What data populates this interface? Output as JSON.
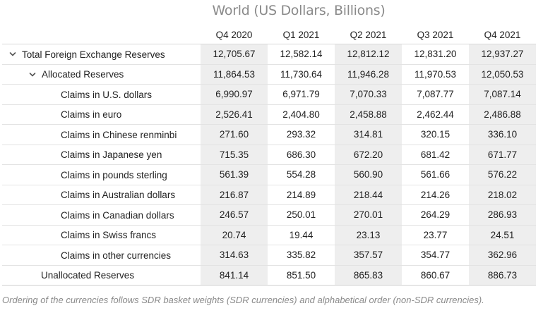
{
  "chart_data": {
    "type": "table",
    "title": "World (US Dollars, Billions)",
    "columns": [
      "Q4 2020",
      "Q1 2021",
      "Q2 2021",
      "Q3 2021",
      "Q4 2021"
    ],
    "rows": [
      {
        "label": "Total Foreign Exchange Reserves",
        "level": 0,
        "expandable": true,
        "values": [
          "12,705.67",
          "12,582.14",
          "12,812.12",
          "12,831.20",
          "12,937.27"
        ]
      },
      {
        "label": "Allocated Reserves",
        "level": 1,
        "expandable": true,
        "values": [
          "11,864.53",
          "11,730.64",
          "11,946.28",
          "11,970.53",
          "12,050.53"
        ]
      },
      {
        "label": "Claims in U.S. dollars",
        "level": 2,
        "expandable": false,
        "values": [
          "6,990.97",
          "6,971.79",
          "7,070.33",
          "7,087.77",
          "7,087.14"
        ]
      },
      {
        "label": "Claims in euro",
        "level": 2,
        "expandable": false,
        "values": [
          "2,526.41",
          "2,404.80",
          "2,458.88",
          "2,462.44",
          "2,486.88"
        ]
      },
      {
        "label": "Claims in Chinese renminbi",
        "level": 2,
        "expandable": false,
        "values": [
          "271.60",
          "293.32",
          "314.81",
          "320.15",
          "336.10"
        ]
      },
      {
        "label": "Claims in Japanese yen",
        "level": 2,
        "expandable": false,
        "values": [
          "715.35",
          "686.30",
          "672.20",
          "681.42",
          "671.77"
        ]
      },
      {
        "label": "Claims in pounds sterling",
        "level": 2,
        "expandable": false,
        "values": [
          "561.39",
          "554.28",
          "560.90",
          "561.66",
          "576.22"
        ]
      },
      {
        "label": "Claims in Australian dollars",
        "level": 2,
        "expandable": false,
        "values": [
          "216.87",
          "214.89",
          "218.44",
          "214.26",
          "218.02"
        ]
      },
      {
        "label": "Claims in Canadian dollars",
        "level": 2,
        "expandable": false,
        "values": [
          "246.57",
          "250.01",
          "270.01",
          "264.29",
          "286.93"
        ]
      },
      {
        "label": "Claims in Swiss francs",
        "level": 2,
        "expandable": false,
        "values": [
          "20.74",
          "19.44",
          "23.13",
          "23.77",
          "24.51"
        ]
      },
      {
        "label": "Claims in other currencies",
        "level": 2,
        "expandable": false,
        "values": [
          "314.63",
          "335.82",
          "357.57",
          "354.77",
          "362.96"
        ]
      },
      {
        "label": "Unallocated Reserves",
        "level": 1,
        "expandable": false,
        "values": [
          "841.14",
          "851.50",
          "865.83",
          "860.67",
          "886.73"
        ]
      }
    ],
    "note": "Ordering of the currencies follows SDR basket weights (SDR currencies) and alphabetical order (non-SDR currencies).",
    "colors": {
      "shaded_column_bg": "#eeeeee",
      "title_color": "#8a8a8a",
      "note_color": "#8a8a8a"
    }
  }
}
